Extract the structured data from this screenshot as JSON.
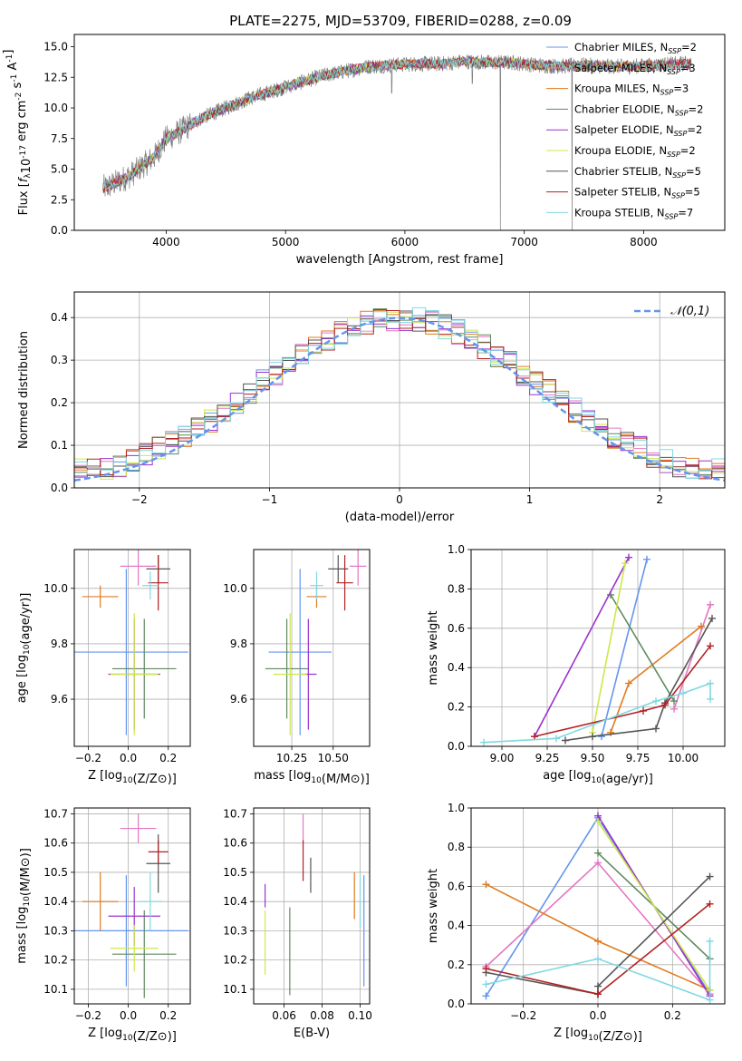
{
  "figure": {
    "title": "PLATE=2275, MJD=53709, FIBERID=0288, z=0.09"
  },
  "models": [
    {
      "name": "Chabrier MILES",
      "nssp": "2",
      "color": "#6495ed"
    },
    {
      "name": "Salpeter MILES",
      "nssp": "3",
      "color": "#e377c2"
    },
    {
      "name": "Kroupa MILES",
      "nssp": "3",
      "color": "#e07b20"
    },
    {
      "name": "Chabrier ELODIE",
      "nssp": "2",
      "color": "#5f8a5f"
    },
    {
      "name": "Salpeter ELODIE",
      "nssp": "2",
      "color": "#9932cc"
    },
    {
      "name": "Kroupa ELODIE",
      "nssp": "2",
      "color": "#cde84a"
    },
    {
      "name": "Chabrier STELIB",
      "nssp": "5",
      "color": "#555555"
    },
    {
      "name": "Salpeter STELIB",
      "nssp": "5",
      "color": "#b22222"
    },
    {
      "name": "Kroupa STELIB",
      "nssp": "7",
      "color": "#80d8e0"
    }
  ],
  "chart_data": [
    {
      "id": "spectrum",
      "type": "line",
      "xlabel": "wavelength [Angstrom, rest frame]",
      "ylabel": "Flux [f_λ10^-17 erg cm^-2 s^-1 A^-1]",
      "xlim": [
        3230,
        8680
      ],
      "ylim": [
        0,
        16
      ],
      "xticks": [
        4000,
        5000,
        6000,
        7000,
        8000
      ],
      "yticks": [
        0.0,
        2.5,
        5.0,
        7.5,
        10.0,
        12.5,
        15.0
      ],
      "grid": false,
      "legend": "top-right",
      "data_color": "#808080",
      "shape": {
        "x": [
          3500,
          3700,
          3900,
          4000,
          4100,
          4300,
          4500,
          4700,
          4900,
          5100,
          5300,
          5500,
          5700,
          5900,
          6100,
          6300,
          6500,
          6700,
          6900,
          7100,
          7300,
          7500,
          7700,
          7900,
          8100,
          8300
        ],
        "y": [
          3.5,
          4.5,
          6.0,
          7.5,
          8.0,
          9.2,
          10.0,
          10.8,
          11.4,
          12.0,
          12.6,
          13.0,
          13.4,
          13.5,
          13.6,
          13.6,
          13.8,
          13.7,
          13.7,
          13.5,
          13.4,
          13.5,
          13.4,
          13.4,
          13.5,
          13.6
        ]
      },
      "dips": [
        {
          "x": 5890,
          "y": 11.2
        },
        {
          "x": 6564,
          "y": 12.0
        },
        {
          "x": 6800,
          "y": 0.0
        },
        {
          "x": 7400,
          "y": 0.0
        }
      ]
    },
    {
      "id": "residuals",
      "type": "histogram",
      "xlabel": "(data-model)/error",
      "ylabel": "Normed distribution",
      "xlim": [
        -2.5,
        2.5
      ],
      "ylim": [
        0,
        0.46
      ],
      "xticks": [
        -2,
        -1,
        0,
        1,
        2
      ],
      "yticks": [
        0.0,
        0.1,
        0.2,
        0.3,
        0.4
      ],
      "grid": true,
      "legend": "top-right",
      "bins": {
        "start": -2.5,
        "width": 0.1,
        "count": 50
      },
      "reference": {
        "label": "𝒩(0,1)",
        "color": "#6495ed",
        "mean": 0,
        "sigma": 1
      }
    },
    {
      "id": "age-vs-Z",
      "type": "errorbar",
      "xlabel": "Z [log10(Z/Z⊙)]",
      "ylabel": "age [log10(age/yr)]",
      "xlim": [
        -0.27,
        0.31
      ],
      "ylim": [
        9.43,
        10.14
      ],
      "xticks": [
        -0.2,
        0.0,
        0.2
      ],
      "xticklabels": [
        "−0.2",
        "0.0",
        "0.2"
      ],
      "yticks": [
        9.6,
        9.8,
        10.0
      ],
      "grid": true,
      "points": [
        {
          "model": 0,
          "x": -0.01,
          "xerr": 0.31,
          "y": 9.77,
          "yerr": 0.3
        },
        {
          "model": 1,
          "x": 0.05,
          "xerr": 0.09,
          "y": 10.08,
          "yerr": 0.07
        },
        {
          "model": 2,
          "x": -0.14,
          "xerr": 0.09,
          "y": 9.97,
          "yerr": 0.04
        },
        {
          "model": 3,
          "x": 0.08,
          "xerr": 0.16,
          "y": 9.71,
          "yerr": 0.18
        },
        {
          "model": 4,
          "x": 0.03,
          "xerr": 0.13,
          "y": 9.69,
          "yerr": 0.2
        },
        {
          "model": 5,
          "x": 0.03,
          "xerr": 0.12,
          "y": 9.69,
          "yerr": 0.22
        },
        {
          "model": 6,
          "x": 0.15,
          "xerr": 0.06,
          "y": 10.07,
          "yerr": 0.05
        },
        {
          "model": 7,
          "x": 0.15,
          "xerr": 0.05,
          "y": 10.02,
          "yerr": 0.1
        },
        {
          "model": 8,
          "x": 0.11,
          "xerr": 0.04,
          "y": 10.01,
          "yerr": 0.05
        }
      ]
    },
    {
      "id": "age-vs-mass",
      "type": "errorbar",
      "xlabel": "mass [log10(M/M⊙)]",
      "ylabel": "",
      "xlim": [
        10.02,
        10.72
      ],
      "ylim": [
        9.43,
        10.14
      ],
      "xticks": [
        10.25,
        10.5
      ],
      "xticklabels": [
        "10.25",
        "10.50"
      ],
      "yticks": [
        9.6,
        9.8,
        10.0
      ],
      "grid": true,
      "points": [
        {
          "model": 0,
          "x": 10.3,
          "xerr": 0.19,
          "y": 9.77,
          "yerr": 0.3
        },
        {
          "model": 1,
          "x": 10.65,
          "xerr": 0.05,
          "y": 10.08,
          "yerr": 0.07
        },
        {
          "model": 2,
          "x": 10.4,
          "xerr": 0.06,
          "y": 9.97,
          "yerr": 0.04
        },
        {
          "model": 3,
          "x": 10.22,
          "xerr": 0.13,
          "y": 9.71,
          "yerr": 0.18
        },
        {
          "model": 4,
          "x": 10.35,
          "xerr": 0.05,
          "y": 9.69,
          "yerr": 0.2
        },
        {
          "model": 5,
          "x": 10.24,
          "xerr": 0.1,
          "y": 9.69,
          "yerr": 0.22
        },
        {
          "model": 6,
          "x": 10.53,
          "xerr": 0.06,
          "y": 10.07,
          "yerr": 0.05
        },
        {
          "model": 7,
          "x": 10.57,
          "xerr": 0.05,
          "y": 10.02,
          "yerr": 0.1
        },
        {
          "model": 8,
          "x": 10.4,
          "xerr": 0.04,
          "y": 10.01,
          "yerr": 0.05
        }
      ]
    },
    {
      "id": "weight-vs-age",
      "type": "line",
      "xlabel": "age [log10(age/yr)]",
      "ylabel": "mass weight",
      "xlim": [
        8.83,
        10.23
      ],
      "ylim": [
        0,
        1.0
      ],
      "xticks": [
        9.0,
        9.25,
        9.5,
        9.75,
        10.0
      ],
      "xticklabels": [
        "9.00",
        "9.25",
        "9.50",
        "9.75",
        "10.00"
      ],
      "yticks": [
        0.0,
        0.2,
        0.4,
        0.6,
        0.8,
        1.0
      ],
      "grid": true,
      "series": [
        {
          "model": 0,
          "x": [
            9.55,
            9.8
          ],
          "y": [
            0.05,
            0.95
          ]
        },
        {
          "model": 1,
          "x": [
            9.95,
            10.15
          ],
          "y": [
            0.19,
            0.72
          ]
        },
        {
          "model": 2,
          "x": [
            9.6,
            9.7,
            10.1
          ],
          "y": [
            0.07,
            0.32,
            0.61
          ]
        },
        {
          "model": 3,
          "x": [
            9.6,
            9.95
          ],
          "y": [
            0.77,
            0.23
          ]
        },
        {
          "model": 4,
          "x": [
            9.18,
            9.7
          ],
          "y": [
            0.05,
            0.96
          ]
        },
        {
          "model": 5,
          "x": [
            9.5,
            9.68
          ],
          "y": [
            0.07,
            0.93
          ]
        },
        {
          "model": 6,
          "x": [
            9.35,
            9.5,
            9.85,
            9.9,
            10.16
          ],
          "y": [
            0.03,
            0.05,
            0.09,
            0.22,
            0.65
          ]
        },
        {
          "model": 7,
          "x": [
            9.18,
            9.78,
            9.9,
            10.15
          ],
          "y": [
            0.05,
            0.18,
            0.21,
            0.51
          ]
        },
        {
          "model": 8,
          "x": [
            8.9,
            9.3,
            9.85,
            10.0,
            10.15,
            10.15
          ],
          "y": [
            0.02,
            0.04,
            0.23,
            0.27,
            0.32,
            0.24
          ]
        }
      ]
    },
    {
      "id": "mass-vs-Z",
      "type": "errorbar",
      "xlabel": "Z [log10(Z/Z⊙)]",
      "ylabel": "mass [log10(M/M⊙)]",
      "xlim": [
        -0.27,
        0.31
      ],
      "ylim": [
        10.05,
        10.72
      ],
      "xticks": [
        -0.2,
        0.0,
        0.2
      ],
      "xticklabels": [
        "−0.2",
        "0.0",
        "0.2"
      ],
      "yticks": [
        10.1,
        10.2,
        10.3,
        10.4,
        10.5,
        10.6,
        10.7
      ],
      "grid": true,
      "points": [
        {
          "model": 0,
          "x": -0.01,
          "xerr": 0.31,
          "y": 10.3,
          "yerr": 0.19
        },
        {
          "model": 1,
          "x": 0.05,
          "xerr": 0.09,
          "y": 10.65,
          "yerr": 0.05
        },
        {
          "model": 2,
          "x": -0.14,
          "xerr": 0.09,
          "y": 10.4,
          "yerr": 0.1
        },
        {
          "model": 3,
          "x": 0.08,
          "xerr": 0.16,
          "y": 10.22,
          "yerr": 0.15
        },
        {
          "model": 4,
          "x": 0.03,
          "xerr": 0.13,
          "y": 10.35,
          "yerr": 0.1
        },
        {
          "model": 5,
          "x": 0.03,
          "xerr": 0.12,
          "y": 10.24,
          "yerr": 0.08
        },
        {
          "model": 6,
          "x": 0.15,
          "xerr": 0.06,
          "y": 10.53,
          "yerr": 0.1
        },
        {
          "model": 7,
          "x": 0.15,
          "xerr": 0.05,
          "y": 10.57,
          "yerr": 0.04
        },
        {
          "model": 8,
          "x": 0.11,
          "xerr": 0.06,
          "y": 10.4,
          "yerr": 0.1
        }
      ]
    },
    {
      "id": "mass-vs-ebv",
      "type": "errorbar",
      "xlabel": "E(B-V)",
      "ylabel": "",
      "xlim": [
        0.044,
        0.105
      ],
      "ylim": [
        10.05,
        10.72
      ],
      "xticks": [
        0.06,
        0.08,
        0.1
      ],
      "xticklabels": [
        "0.06",
        "0.08",
        "0.10"
      ],
      "yticks": [
        10.1,
        10.2,
        10.3,
        10.4,
        10.5,
        10.6,
        10.7
      ],
      "grid": true,
      "points": [
        {
          "model": 0,
          "x": 0.102,
          "xerr": 0,
          "y": 10.3,
          "yerr": 0.19
        },
        {
          "model": 1,
          "x": 0.07,
          "xerr": 0,
          "y": 10.65,
          "yerr": 0.05
        },
        {
          "model": 2,
          "x": 0.097,
          "xerr": 0,
          "y": 10.42,
          "yerr": 0.08
        },
        {
          "model": 3,
          "x": 0.063,
          "xerr": 0,
          "y": 10.23,
          "yerr": 0.15
        },
        {
          "model": 4,
          "x": 0.05,
          "xerr": 0,
          "y": 10.42,
          "yerr": 0.04
        },
        {
          "model": 5,
          "x": 0.05,
          "xerr": 0,
          "y": 10.26,
          "yerr": 0.11
        },
        {
          "model": 6,
          "x": 0.074,
          "xerr": 0,
          "y": 10.49,
          "yerr": 0.06
        },
        {
          "model": 7,
          "x": 0.07,
          "xerr": 0,
          "y": 10.54,
          "yerr": 0.07
        },
        {
          "model": 8,
          "x": 0.1,
          "xerr": 0,
          "y": 10.4,
          "yerr": 0.09
        }
      ]
    },
    {
      "id": "weight-vs-Z",
      "type": "line",
      "xlabel": "Z [log10(Z/Z⊙)]",
      "ylabel": "mass weight",
      "xlim": [
        -0.34,
        0.34
      ],
      "ylim": [
        0,
        1.0
      ],
      "xticks": [
        -0.2,
        0.0,
        0.2
      ],
      "xticklabels": [
        "−0.2",
        "0.0",
        "0.2"
      ],
      "yticks": [
        0.0,
        0.2,
        0.4,
        0.6,
        0.8,
        1.0
      ],
      "grid": true,
      "series": [
        {
          "model": 0,
          "x": [
            -0.3,
            0.0,
            0.3
          ],
          "y": [
            0.04,
            0.95,
            0.05
          ]
        },
        {
          "model": 1,
          "x": [
            -0.3,
            0.0,
            0.3
          ],
          "y": [
            0.19,
            0.72,
            0.05
          ]
        },
        {
          "model": 2,
          "x": [
            -0.3,
            0.0,
            0.3
          ],
          "y": [
            0.61,
            0.32,
            0.07
          ]
        },
        {
          "model": 3,
          "x": [
            0.0,
            0.3
          ],
          "y": [
            0.77,
            0.23
          ]
        },
        {
          "model": 4,
          "x": [
            0.0,
            0.3
          ],
          "y": [
            0.96,
            0.04
          ]
        },
        {
          "model": 5,
          "x": [
            0.0,
            0.3
          ],
          "y": [
            0.93,
            0.07
          ]
        },
        {
          "model": 6,
          "x": [
            -0.3,
            0.0,
            0.0,
            0.3
          ],
          "y": [
            0.16,
            0.05,
            0.09,
            0.65
          ]
        },
        {
          "model": 7,
          "x": [
            -0.3,
            0.0,
            0.0,
            0.3
          ],
          "y": [
            0.18,
            0.05,
            0.05,
            0.51
          ]
        },
        {
          "model": 8,
          "x": [
            -0.3,
            0.0,
            0.3,
            0.3
          ],
          "y": [
            0.1,
            0.23,
            0.02,
            0.32
          ]
        }
      ]
    }
  ]
}
